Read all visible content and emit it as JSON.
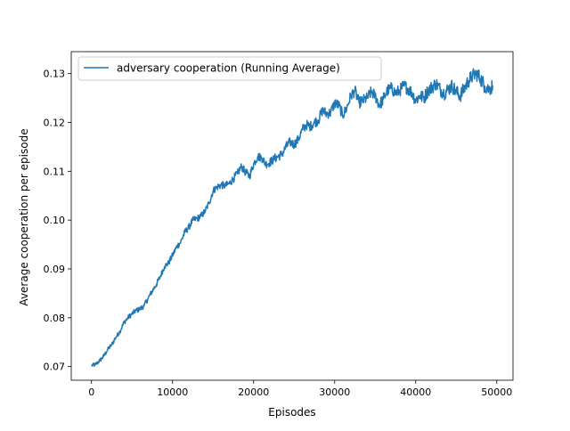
{
  "colors": {
    "series": "#1f77b4",
    "axis": "#000000",
    "legend_border": "#cccccc"
  },
  "chart_data": {
    "type": "line",
    "title": "",
    "xlabel": "Episodes",
    "ylabel": "Average cooperation per episode",
    "xlim": [
      -2500,
      52000
    ],
    "ylim": [
      0.0672,
      0.1345
    ],
    "xticks": [
      0,
      10000,
      20000,
      30000,
      40000,
      50000
    ],
    "xtick_labels": [
      "0",
      "10000",
      "20000",
      "30000",
      "40000",
      "50000"
    ],
    "yticks": [
      0.07,
      0.08,
      0.09,
      0.1,
      0.11,
      0.12,
      0.13
    ],
    "ytick_labels": [
      "0.07",
      "0.08",
      "0.09",
      "0.10",
      "0.11",
      "0.12",
      "0.13"
    ],
    "grid": false,
    "legend_position": "top-left",
    "series": [
      {
        "name": "adversary cooperation (Running Average)",
        "x": [
          0,
          500,
          1000,
          1500,
          2000,
          2500,
          3000,
          3500,
          4000,
          4500,
          5000,
          5500,
          6000,
          6500,
          7000,
          7500,
          8000,
          8500,
          9000,
          9500,
          10000,
          10500,
          11000,
          11500,
          12000,
          12500,
          13000,
          13500,
          14000,
          14500,
          15000,
          15500,
          16000,
          16500,
          17000,
          17500,
          18000,
          18500,
          19000,
          19500,
          20000,
          20500,
          21000,
          21500,
          22000,
          22500,
          23000,
          23500,
          24000,
          24500,
          25000,
          25500,
          26000,
          26500,
          27000,
          27500,
          28000,
          28500,
          29000,
          29500,
          30000,
          30500,
          31000,
          31500,
          32000,
          32500,
          33000,
          33500,
          34000,
          34500,
          35000,
          35500,
          36000,
          36500,
          37000,
          37500,
          38000,
          38500,
          39000,
          39500,
          40000,
          40500,
          41000,
          41500,
          42000,
          42500,
          43000,
          43500,
          44000,
          44500,
          45000,
          45500,
          46000,
          46500,
          47000,
          47500,
          48000,
          48500,
          49000,
          49500
        ],
        "y": [
          0.0702,
          0.0704,
          0.0712,
          0.0721,
          0.0735,
          0.0745,
          0.076,
          0.0772,
          0.079,
          0.08,
          0.0808,
          0.0815,
          0.0818,
          0.0825,
          0.084,
          0.0855,
          0.0868,
          0.0885,
          0.0905,
          0.0912,
          0.0928,
          0.0945,
          0.0955,
          0.0975,
          0.0985,
          0.1,
          0.1003,
          0.1008,
          0.1018,
          0.1035,
          0.106,
          0.1068,
          0.1072,
          0.107,
          0.1075,
          0.1085,
          0.1095,
          0.111,
          0.1098,
          0.109,
          0.1115,
          0.113,
          0.1128,
          0.1115,
          0.1118,
          0.1125,
          0.113,
          0.1135,
          0.115,
          0.116,
          0.1155,
          0.1165,
          0.1185,
          0.1195,
          0.1192,
          0.12,
          0.1205,
          0.1225,
          0.1218,
          0.122,
          0.124,
          0.1235,
          0.1215,
          0.123,
          0.1255,
          0.1265,
          0.124,
          0.1245,
          0.125,
          0.1262,
          0.1255,
          0.1235,
          0.1248,
          0.1265,
          0.127,
          0.126,
          0.1265,
          0.1275,
          0.127,
          0.1262,
          0.1245,
          0.1255,
          0.125,
          0.1265,
          0.1272,
          0.128,
          0.1268,
          0.126,
          0.1268,
          0.1275,
          0.1262,
          0.1255,
          0.127,
          0.1285,
          0.1295,
          0.13,
          0.129,
          0.1275,
          0.1268,
          0.1275
        ]
      }
    ]
  }
}
